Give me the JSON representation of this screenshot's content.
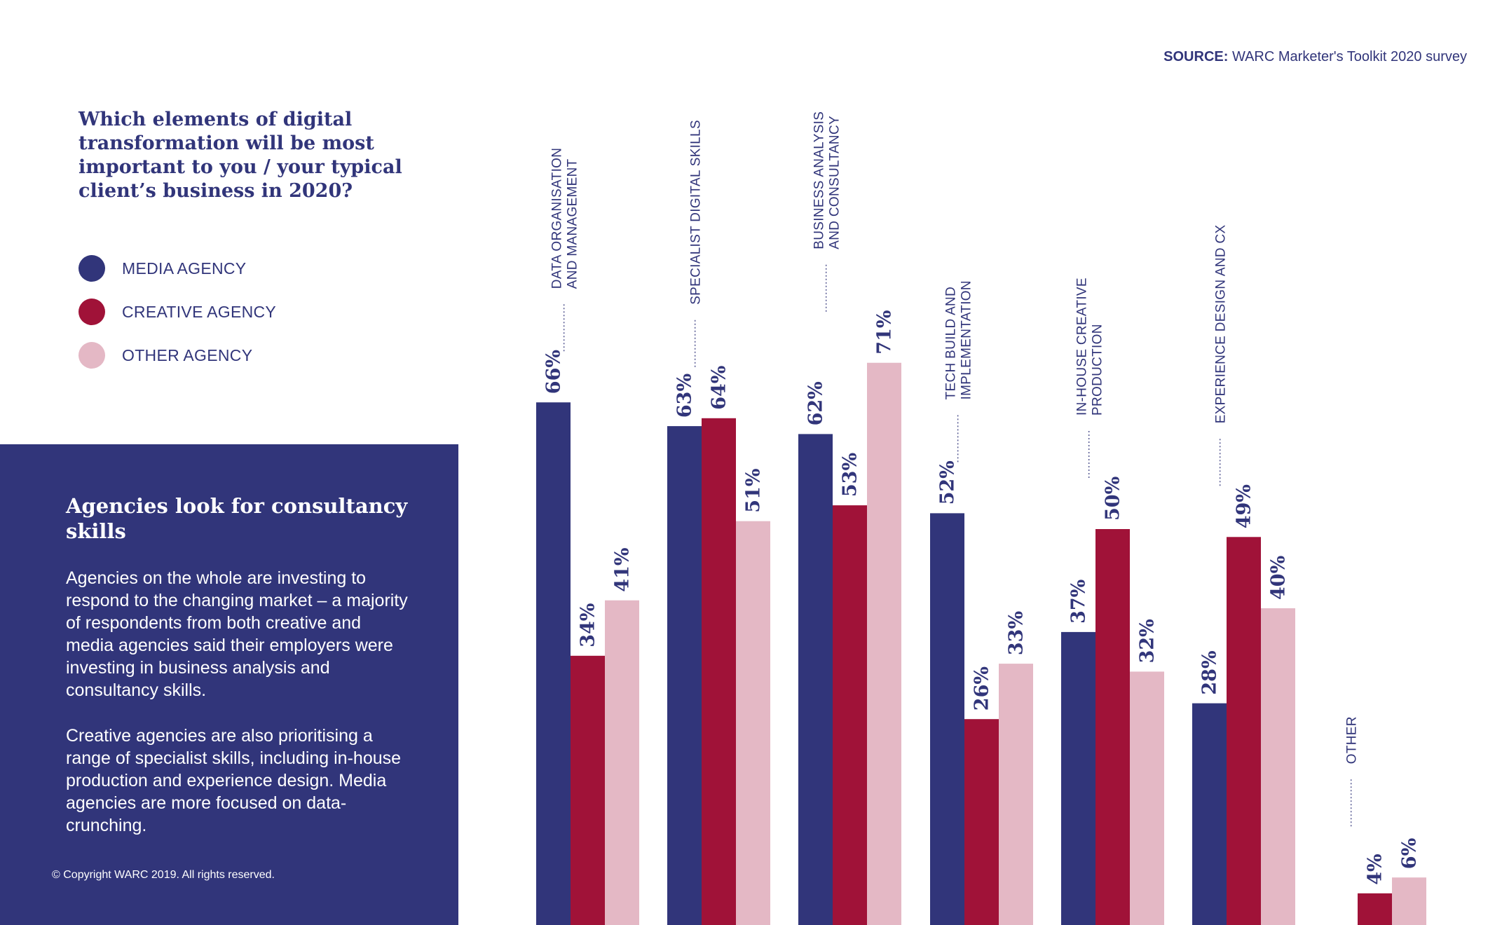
{
  "source": {
    "prefix": "SOURCE:",
    "text": "WARC Marketer's Toolkit 2020 survey"
  },
  "question": "Which elements of digital transformation will be most important to you / your typical client’s business in 2020?",
  "legend": [
    {
      "label": "MEDIA AGENCY",
      "color": "#31357a"
    },
    {
      "label": "CREATIVE AGENCY",
      "color": "#a01238"
    },
    {
      "label": "OTHER AGENCY",
      "color": "#e4b8c5"
    }
  ],
  "panel": {
    "title": "Agencies look for consultancy skills",
    "paragraph1": "Agencies on the whole are investing to respond to the changing market – a majority of respondents from both creative and media agencies said their employers were investing in business analysis and consultancy skills.",
    "paragraph2": "Creative agencies are also prioritising a range of specialist skills, including in-house production and experience design. Media agencies are more focused on data-crunching.",
    "copyright": "© Copyright WARC 2019. All rights reserved."
  },
  "chart_data": {
    "type": "bar",
    "title": "Which elements of digital transformation will be most important to you / your typical client’s business in 2020?",
    "categories": [
      [
        "DATA ORGANISATION",
        "AND MANAGEMENT"
      ],
      [
        "SPECIALIST DIGITAL SKILLS"
      ],
      [
        "BUSINESS ANALYSIS",
        "AND CONSULTANCY"
      ],
      [
        "TECH BUILD AND",
        "IMPLEMENTATION"
      ],
      [
        "IN-HOUSE CREATIVE",
        "PRODUCTION"
      ],
      [
        "EXPERIENCE DESIGN AND CX"
      ],
      [
        "OTHER"
      ]
    ],
    "series": [
      {
        "name": "MEDIA AGENCY",
        "color": "#31357a",
        "values": [
          66,
          63,
          62,
          52,
          37,
          28,
          null
        ]
      },
      {
        "name": "CREATIVE AGENCY",
        "color": "#a01238",
        "values": [
          34,
          64,
          53,
          26,
          50,
          49,
          4
        ]
      },
      {
        "name": "OTHER AGENCY",
        "color": "#e4b8c5",
        "values": [
          41,
          51,
          71,
          33,
          32,
          40,
          6
        ]
      }
    ],
    "value_suffix": "%",
    "ylim": [
      0,
      71
    ],
    "grid": false,
    "legend_position": "left"
  }
}
